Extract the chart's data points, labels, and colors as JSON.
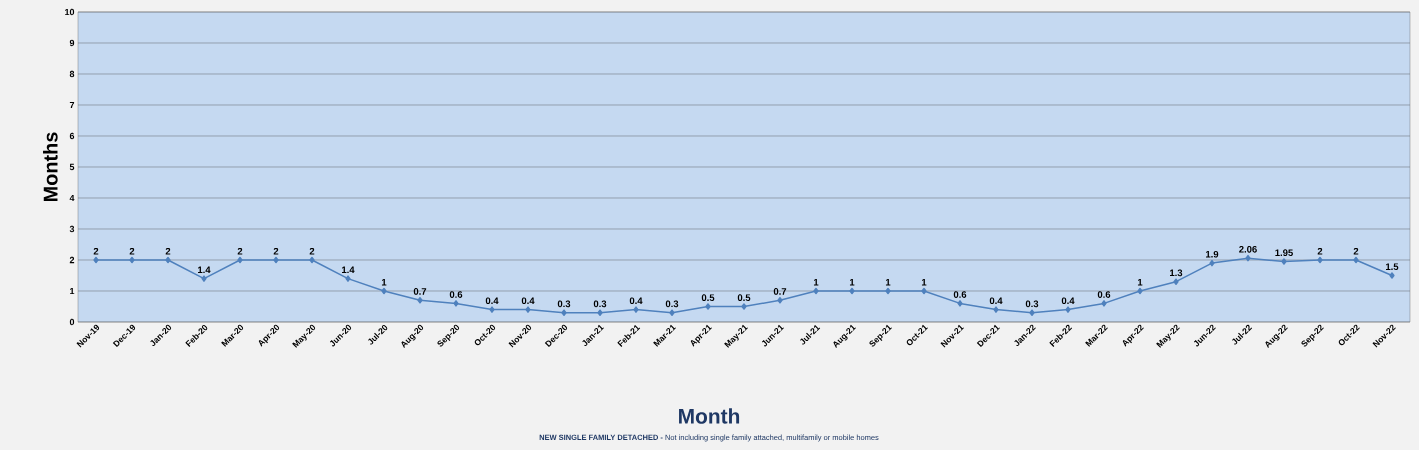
{
  "chart_data": {
    "type": "line",
    "xlabel": "Month",
    "ylabel": "Months",
    "categories": [
      "Nov-19",
      "Dec-19",
      "Jan-20",
      "Feb-20",
      "Mar-20",
      "Apr-20",
      "May-20",
      "Jun-20",
      "Jul-20",
      "Aug-20",
      "Sep-20",
      "Oct-20",
      "Nov-20",
      "Dec-20",
      "Jan-21",
      "Feb-21",
      "Mar-21",
      "Apr-21",
      "May-21",
      "Jun-21",
      "Jul-21",
      "Aug-21",
      "Sep-21",
      "Oct-21",
      "Nov-21",
      "Dec-21",
      "Jan-22",
      "Feb-22",
      "Mar-22",
      "Apr-22",
      "May-22",
      "Jun-22",
      "Jul-22",
      "Aug-22",
      "Sep-22",
      "Oct-22",
      "Nov-22"
    ],
    "values": [
      2,
      2,
      2,
      1.4,
      2,
      2,
      2,
      1.4,
      1,
      0.7,
      0.6,
      0.4,
      0.4,
      0.3,
      0.3,
      0.4,
      0.3,
      0.5,
      0.5,
      0.7,
      1,
      1,
      1,
      1,
      0.6,
      0.4,
      0.3,
      0.4,
      0.6,
      1,
      1.3,
      1.9,
      2.06,
      1.95,
      2,
      2,
      1.5
    ],
    "color": "#4f81bd",
    "marker": "diamond",
    "data_labels": true,
    "grid": "y",
    "ylim": [
      0,
      10
    ],
    "yticks": [
      0,
      1,
      2,
      3,
      4,
      5,
      6,
      7,
      8,
      9,
      10
    ],
    "annotations": [
      "**NEW SINGLE FAMILY DETACHED -** Not including single family attached, multifamily or mobile homes"
    ]
  }
}
